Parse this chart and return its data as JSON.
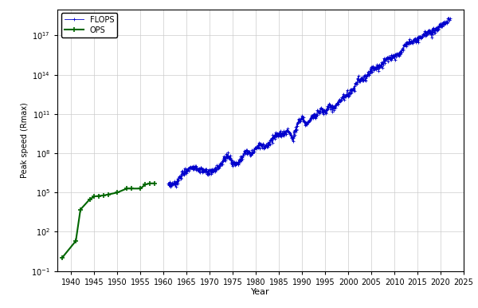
{
  "title": "",
  "xlabel": "Year",
  "ylabel": "Peak speed (Rmax)",
  "xlim": [
    1937,
    2025
  ],
  "ylim": [
    0.1,
    1e+19
  ],
  "background_color": "#ffffff",
  "grid_color": "#cccccc",
  "flops_color": "#0000cc",
  "ops_color": "#006600",
  "flops_data": [
    [
      1961,
      300000.0
    ],
    [
      1962,
      400000.0
    ],
    [
      1963,
      600000.0
    ],
    [
      1964,
      3000000.0
    ],
    [
      1965,
      5000000.0
    ],
    [
      1966,
      10000000.0
    ],
    [
      1967,
      8000000.0
    ],
    [
      1968,
      5000000.0
    ],
    [
      1969,
      4000000.0
    ],
    [
      1970,
      3000000.0
    ],
    [
      1971,
      5000000.0
    ],
    [
      1972,
      10000000.0
    ],
    [
      1973,
      30000000.0
    ],
    [
      1974,
      80000000.0
    ],
    [
      1975,
      15000000.0
    ],
    [
      1976,
      20000000.0
    ],
    [
      1977,
      50000000.0
    ],
    [
      1978,
      150000000.0
    ],
    [
      1979,
      80000000.0
    ],
    [
      1980,
      300000000.0
    ],
    [
      1981,
      500000000.0
    ],
    [
      1982,
      300000000.0
    ],
    [
      1983,
      800000000.0
    ],
    [
      1984,
      2000000000.0
    ],
    [
      1985,
      2500000000.0
    ],
    [
      1986,
      3000000000.0
    ],
    [
      1987,
      6000000000.0
    ],
    [
      1988,
      1200000000.0
    ],
    [
      1989,
      20000000000.0
    ],
    [
      1990,
      60000000000.0
    ],
    [
      1991,
      15000000000.0
    ],
    [
      1992,
      60000000000.0
    ],
    [
      1993,
      100000000000.0
    ],
    [
      1994,
      200000000000.0
    ],
    [
      1995,
      150000000000.0
    ],
    [
      1996,
      400000000000.0
    ],
    [
      1997,
      300000000000.0
    ],
    [
      1998,
      1000000000000.0
    ],
    [
      1999,
      2000000000000.0
    ],
    [
      2000,
      4000000000000.0
    ],
    [
      2001,
      6000000000000.0
    ],
    [
      2002,
      35000000000000.0
    ],
    [
      2003,
      50000000000000.0
    ],
    [
      2004,
      70000000000000.0
    ],
    [
      2005,
      300000000000000.0
    ],
    [
      2006,
      350000000000000.0
    ],
    [
      2007,
      450000000000000.0
    ],
    [
      2008,
      1500000000000000.0
    ],
    [
      2009,
      2000000000000000.0
    ],
    [
      2010,
      3000000000000000.0
    ],
    [
      2011,
      4000000000000000.0
    ],
    [
      2012,
      1.5e+16
    ],
    [
      2013,
      3e+16
    ],
    [
      2014,
      3.5e+16
    ],
    [
      2015,
      5e+16
    ],
    [
      2016,
      1e+17
    ],
    [
      2017,
      2e+17
    ],
    [
      2018,
      1.5e+17
    ],
    [
      2019,
      3e+17
    ],
    [
      2020,
      5e+17
    ],
    [
      2021,
      1e+18
    ],
    [
      2022,
      2e+18
    ]
  ],
  "ops_data": [
    [
      1938,
      1.0
    ],
    [
      1941,
      20.0
    ],
    [
      1942,
      5000.0
    ],
    [
      1944,
      30000.0
    ],
    [
      1945,
      50000.0
    ],
    [
      1946,
      55000.0
    ],
    [
      1947,
      60000.0
    ],
    [
      1948,
      70000.0
    ],
    [
      1950,
      100000.0
    ],
    [
      1952,
      200000.0
    ],
    [
      1953,
      200000.0
    ],
    [
      1955,
      200000.0
    ],
    [
      1956,
      400000.0
    ],
    [
      1957,
      500000.0
    ],
    [
      1958,
      500000.0
    ]
  ]
}
